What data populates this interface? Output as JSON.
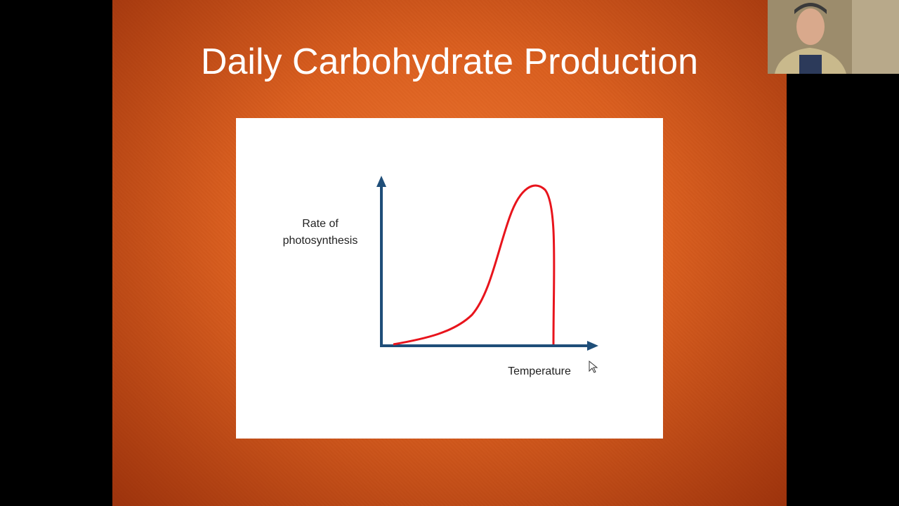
{
  "slide": {
    "title": "Daily Carbohydrate Production",
    "diagram": {
      "y_axis_label": [
        "Rate of",
        "photosynthesis"
      ],
      "x_axis_label": "Temperature"
    }
  }
}
